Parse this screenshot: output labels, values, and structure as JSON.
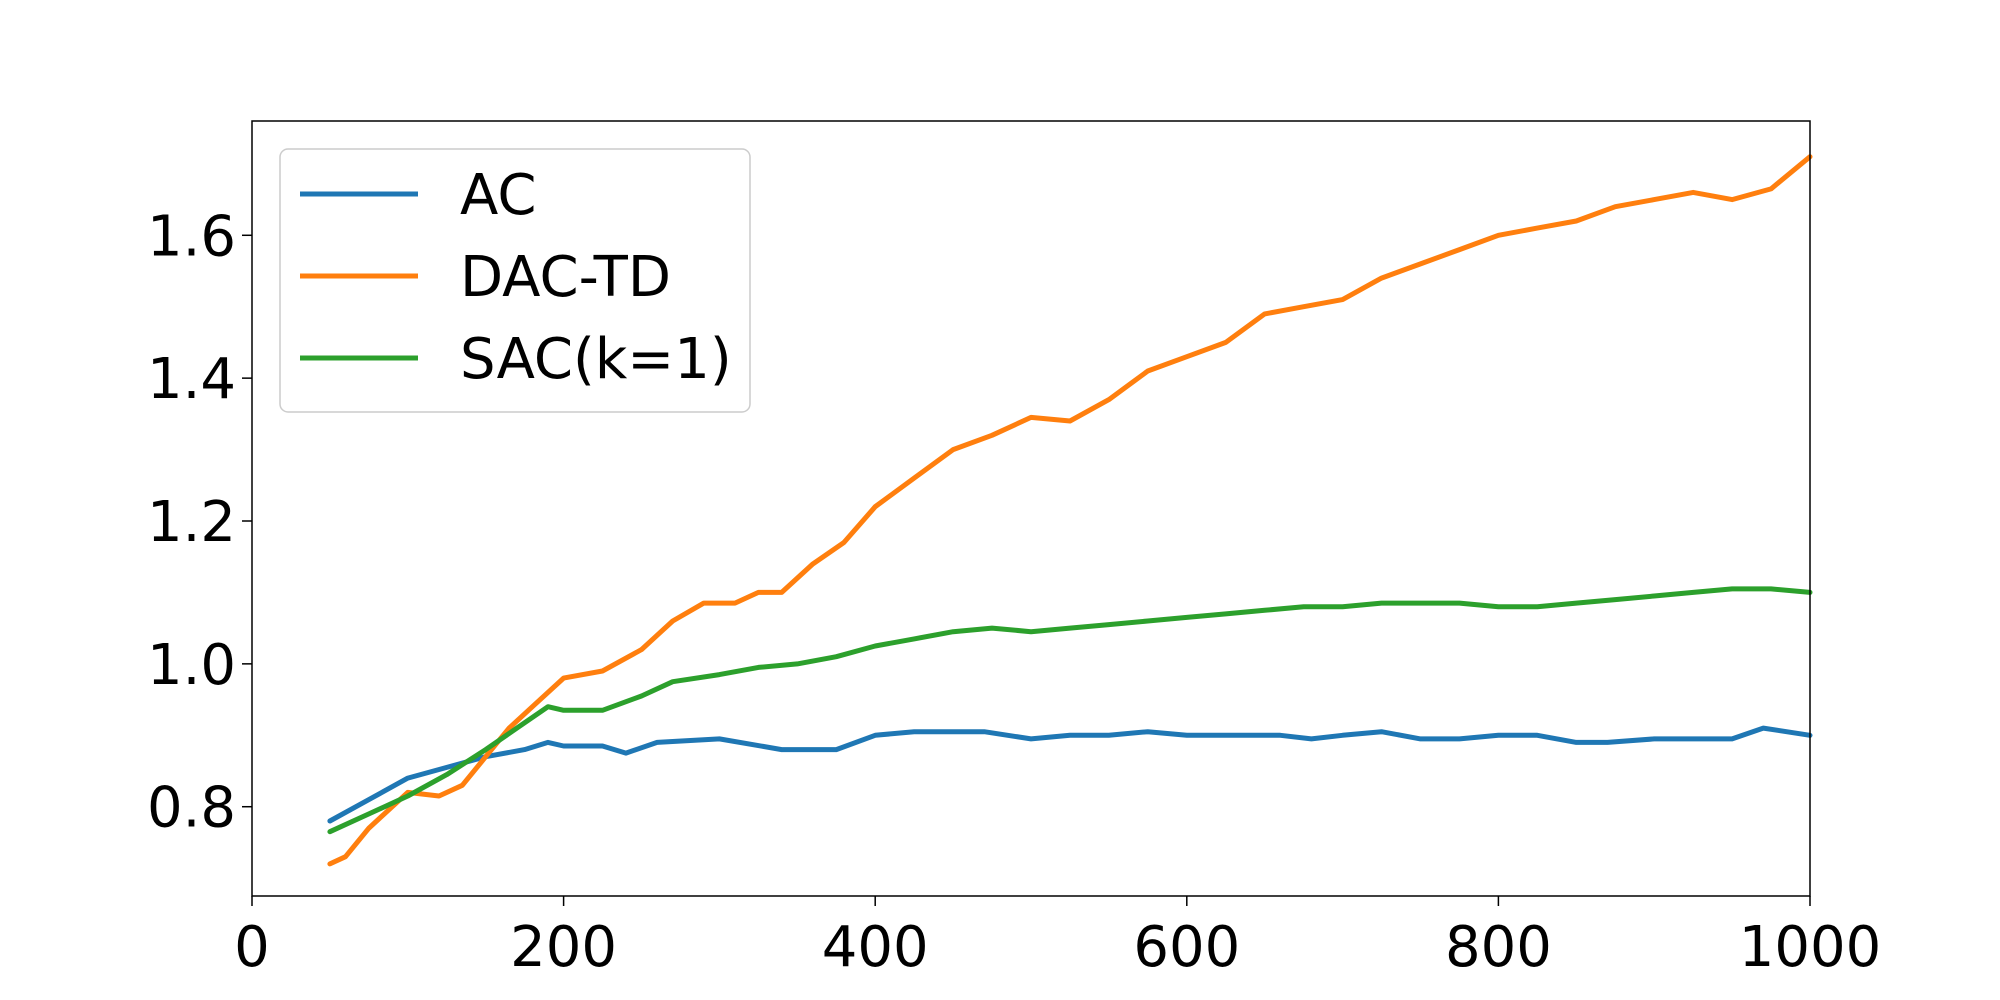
{
  "chart_data": {
    "type": "line",
    "title": "",
    "xlabel": "",
    "ylabel": "",
    "xlim": [
      0,
      1000
    ],
    "ylim": [
      0.675,
      1.76
    ],
    "xticks": [
      "0",
      "200",
      "400",
      "600",
      "800",
      "1000"
    ],
    "yticks": [
      "0.8",
      "1.0",
      "1.2",
      "1.4",
      "1.6"
    ],
    "grid": false,
    "legend_position": "top-left",
    "series": [
      {
        "name": "AC",
        "color": "#1f77b4",
        "x": [
          50,
          75,
          100,
          125,
          150,
          175,
          190,
          200,
          225,
          240,
          260,
          300,
          340,
          375,
          400,
          425,
          450,
          470,
          500,
          525,
          550,
          575,
          600,
          625,
          660,
          680,
          700,
          725,
          750,
          775,
          800,
          825,
          850,
          870,
          900,
          925,
          950,
          970,
          1000
        ],
        "y": [
          0.78,
          0.81,
          0.84,
          0.855,
          0.87,
          0.88,
          0.89,
          0.885,
          0.885,
          0.875,
          0.89,
          0.895,
          0.88,
          0.88,
          0.9,
          0.905,
          0.905,
          0.905,
          0.895,
          0.9,
          0.9,
          0.905,
          0.9,
          0.9,
          0.9,
          0.895,
          0.9,
          0.905,
          0.895,
          0.895,
          0.9,
          0.9,
          0.89,
          0.89,
          0.895,
          0.895,
          0.895,
          0.91,
          0.9
        ]
      },
      {
        "name": "DAC-TD",
        "color": "#ff7f0e",
        "x": [
          50,
          60,
          75,
          100,
          120,
          135,
          150,
          165,
          180,
          200,
          225,
          250,
          270,
          290,
          310,
          325,
          340,
          360,
          380,
          400,
          425,
          450,
          475,
          500,
          525,
          550,
          575,
          600,
          625,
          650,
          675,
          700,
          725,
          750,
          775,
          800,
          825,
          850,
          875,
          900,
          925,
          950,
          975,
          1000
        ],
        "y": [
          0.72,
          0.73,
          0.77,
          0.82,
          0.815,
          0.83,
          0.87,
          0.91,
          0.94,
          0.98,
          0.99,
          1.02,
          1.06,
          1.085,
          1.085,
          1.1,
          1.1,
          1.14,
          1.17,
          1.22,
          1.26,
          1.3,
          1.32,
          1.345,
          1.34,
          1.37,
          1.41,
          1.43,
          1.45,
          1.49,
          1.5,
          1.51,
          1.54,
          1.56,
          1.58,
          1.6,
          1.61,
          1.62,
          1.64,
          1.65,
          1.66,
          1.65,
          1.665,
          1.71
        ]
      },
      {
        "name": "SAC(k=1)",
        "color": "#2ca02c",
        "x": [
          50,
          75,
          100,
          125,
          150,
          170,
          190,
          200,
          225,
          250,
          270,
          300,
          325,
          350,
          375,
          400,
          425,
          450,
          475,
          500,
          525,
          550,
          575,
          600,
          625,
          650,
          675,
          700,
          725,
          750,
          775,
          800,
          825,
          850,
          875,
          900,
          925,
          950,
          975,
          1000
        ],
        "y": [
          0.765,
          0.79,
          0.815,
          0.845,
          0.88,
          0.91,
          0.94,
          0.935,
          0.935,
          0.955,
          0.975,
          0.985,
          0.995,
          1.0,
          1.01,
          1.025,
          1.035,
          1.045,
          1.05,
          1.045,
          1.05,
          1.055,
          1.06,
          1.065,
          1.07,
          1.075,
          1.08,
          1.08,
          1.085,
          1.085,
          1.085,
          1.08,
          1.08,
          1.085,
          1.09,
          1.095,
          1.1,
          1.105,
          1.105,
          1.1
        ]
      }
    ]
  }
}
